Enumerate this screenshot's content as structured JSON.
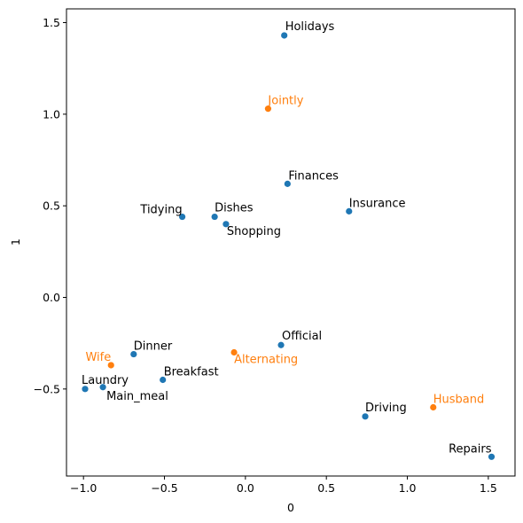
{
  "chart_data": {
    "type": "scatter",
    "title": "",
    "xlabel": "0",
    "ylabel": "1",
    "xlim": [
      -1.105,
      1.665
    ],
    "ylim": [
      -0.975,
      1.575
    ],
    "grid": false,
    "xticks": [
      -1.0,
      -0.5,
      0.0,
      0.5,
      1.0,
      1.5
    ],
    "xtick_labels": [
      "−1.0",
      "−0.5",
      "0.0",
      "0.5",
      "1.0",
      "1.5"
    ],
    "yticks": [
      -0.5,
      0.0,
      0.5,
      1.0,
      1.5
    ],
    "ytick_labels": [
      "−0.5",
      "0.0",
      "0.5",
      "1.0",
      "1.5"
    ],
    "colors": {
      "rows": "#1f77b4",
      "columns": "#ff7f0e"
    },
    "series": [
      {
        "role": "rows",
        "points": [
          {
            "label": "Laundry",
            "x": -0.99,
            "y": -0.5,
            "anchor": "start",
            "ldx": -4,
            "ldy": -6
          },
          {
            "label": "Main_meal",
            "x": -0.88,
            "y": -0.49,
            "anchor": "start",
            "ldx": 4,
            "ldy": 14
          },
          {
            "label": "Dinner",
            "x": -0.69,
            "y": -0.31,
            "anchor": "start",
            "ldx": 0,
            "ldy": -5
          },
          {
            "label": "Breakfast",
            "x": -0.51,
            "y": -0.45,
            "anchor": "start",
            "ldx": 1,
            "ldy": -5
          },
          {
            "label": "Tidying",
            "x": -0.39,
            "y": 0.44,
            "anchor": "end",
            "ldx": 0,
            "ldy": -4
          },
          {
            "label": "Dishes",
            "x": -0.19,
            "y": 0.44,
            "anchor": "start",
            "ldx": 0,
            "ldy": -6
          },
          {
            "label": "Shopping",
            "x": -0.12,
            "y": 0.4,
            "anchor": "start",
            "ldx": 1,
            "ldy": 12
          },
          {
            "label": "Official",
            "x": 0.22,
            "y": -0.26,
            "anchor": "start",
            "ldx": 1,
            "ldy": -6
          },
          {
            "label": "Holidays",
            "x": 0.24,
            "y": 1.43,
            "anchor": "start",
            "ldx": 1,
            "ldy": -6
          },
          {
            "label": "Finances",
            "x": 0.26,
            "y": 0.62,
            "anchor": "start",
            "ldx": 1,
            "ldy": -5
          },
          {
            "label": "Insurance",
            "x": 0.64,
            "y": 0.47,
            "anchor": "start",
            "ldx": 0,
            "ldy": -5
          },
          {
            "label": "Driving",
            "x": 0.74,
            "y": -0.65,
            "anchor": "start",
            "ldx": 0,
            "ldy": -6
          },
          {
            "label": "Repairs",
            "x": 1.52,
            "y": -0.87,
            "anchor": "end",
            "ldx": 0,
            "ldy": -5
          }
        ]
      },
      {
        "role": "columns",
        "points": [
          {
            "label": "Wife",
            "x": -0.83,
            "y": -0.37,
            "anchor": "end",
            "ldx": 0,
            "ldy": -5
          },
          {
            "label": "Alternating",
            "x": -0.07,
            "y": -0.3,
            "anchor": "start",
            "ldx": 0,
            "ldy": 12
          },
          {
            "label": "Jointly",
            "x": 0.14,
            "y": 1.03,
            "anchor": "start",
            "ldx": 0,
            "ldy": -5
          },
          {
            "label": "Husband",
            "x": 1.16,
            "y": -0.6,
            "anchor": "start",
            "ldx": 0,
            "ldy": -5
          }
        ]
      }
    ]
  }
}
